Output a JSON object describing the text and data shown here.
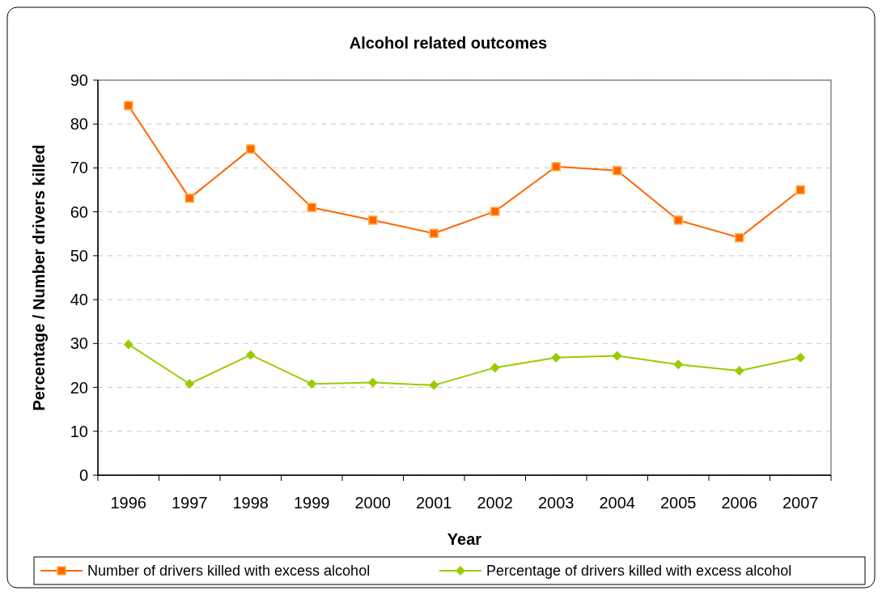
{
  "chart_data": {
    "type": "line",
    "title": "Alcohol related outcomes",
    "xlabel": "Year",
    "ylabel": "Percentage / Number drivers killed",
    "categories": [
      "1996",
      "1997",
      "1998",
      "1999",
      "2000",
      "2001",
      "2002",
      "2003",
      "2004",
      "2005",
      "2006",
      "2007"
    ],
    "series": [
      {
        "name": "Number of drivers killed with excess alcohol",
        "color": "#ff6600",
        "marker": "square",
        "values": [
          84.2,
          63.1,
          74.3,
          61,
          58.1,
          55.1,
          60.1,
          70.3,
          69.4,
          58.1,
          54.1,
          65
        ]
      },
      {
        "name": "Percentage of drivers killed with excess alcohol",
        "color": "#99cc00",
        "marker": "diamond",
        "values": [
          29.8,
          20.8,
          27.4,
          20.8,
          21.1,
          20.5,
          24.5,
          26.8,
          27.2,
          25.2,
          23.8,
          26.8
        ]
      }
    ],
    "ylim": [
      0,
      90
    ],
    "yticks": [
      0,
      10,
      20,
      30,
      40,
      50,
      60,
      70,
      80,
      90
    ],
    "grid": "y",
    "legend": "bottom",
    "line_style": "solid"
  }
}
